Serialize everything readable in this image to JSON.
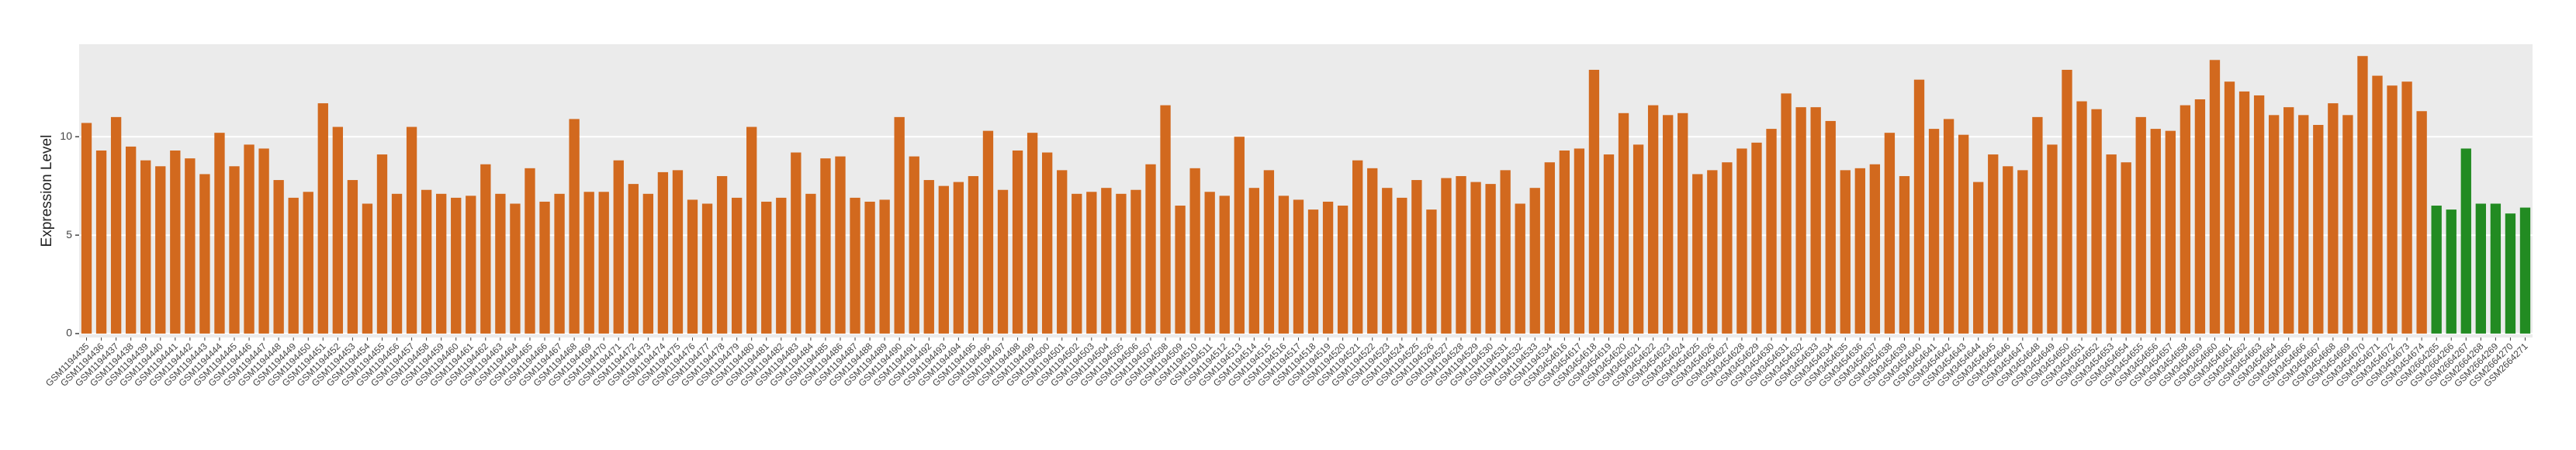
{
  "chart_data": {
    "type": "bar",
    "y_label": "Expression Level",
    "categories": [
      "GSM1194435",
      "GSM1194436",
      "GSM1194437",
      "GSM1194438",
      "GSM1194439",
      "GSM1194440",
      "GSM1194441",
      "GSM1194442",
      "GSM1194443",
      "GSM1194444",
      "GSM1194445",
      "GSM1194446",
      "GSM1194447",
      "GSM1194448",
      "GSM1194449",
      "GSM1194450",
      "GSM1194451",
      "GSM1194452",
      "GSM1194453",
      "GSM1194454",
      "GSM1194455",
      "GSM1194456",
      "GSM1194457",
      "GSM1194458",
      "GSM1194459",
      "GSM1194460",
      "GSM1194461",
      "GSM1194462",
      "GSM1194463",
      "GSM1194464",
      "GSM1194465",
      "GSM1194466",
      "GSM1194467",
      "GSM1194468",
      "GSM1194469",
      "GSM1194470",
      "GSM1194471",
      "GSM1194472",
      "GSM1194473",
      "GSM1194474",
      "GSM1194475",
      "GSM1194476",
      "GSM1194477",
      "GSM1194478",
      "GSM1194479",
      "GSM1194480",
      "GSM1194481",
      "GSM1194482",
      "GSM1194483",
      "GSM1194484",
      "GSM1194485",
      "GSM1194486",
      "GSM1194487",
      "GSM1194488",
      "GSM1194489",
      "GSM1194490",
      "GSM1194491",
      "GSM1194492",
      "GSM1194493",
      "GSM1194494",
      "GSM1194495",
      "GSM1194496",
      "GSM1194497",
      "GSM1194498",
      "GSM1194499",
      "GSM1194500",
      "GSM1194501",
      "GSM1194502",
      "GSM1194503",
      "GSM1194504",
      "GSM1194505",
      "GSM1194506",
      "GSM1194507",
      "GSM1194508",
      "GSM1194509",
      "GSM1194510",
      "GSM1194511",
      "GSM1194512",
      "GSM1194513",
      "GSM1194514",
      "GSM1194515",
      "GSM1194516",
      "GSM1194517",
      "GSM1194518",
      "GSM1194519",
      "GSM1194520",
      "GSM1194521",
      "GSM1194522",
      "GSM1194523",
      "GSM1194524",
      "GSM1194525",
      "GSM1194526",
      "GSM1194527",
      "GSM1194528",
      "GSM1194529",
      "GSM1194530",
      "GSM1194531",
      "GSM1194532",
      "GSM1194533",
      "GSM1194534",
      "GSM3454616",
      "GSM3454617",
      "GSM3454618",
      "GSM3454619",
      "GSM3454620",
      "GSM3454621",
      "GSM3454622",
      "GSM3454623",
      "GSM3454624",
      "GSM3454625",
      "GSM3454626",
      "GSM3454627",
      "GSM3454628",
      "GSM3454629",
      "GSM3454630",
      "GSM3454631",
      "GSM3454632",
      "GSM3454633",
      "GSM3454634",
      "GSM3454635",
      "GSM3454636",
      "GSM3454637",
      "GSM3454638",
      "GSM3454639",
      "GSM3454640",
      "GSM3454641",
      "GSM3454642",
      "GSM3454643",
      "GSM3454644",
      "GSM3454645",
      "GSM3454646",
      "GSM3454647",
      "GSM3454648",
      "GSM3454649",
      "GSM3454650",
      "GSM3454651",
      "GSM3454652",
      "GSM3454653",
      "GSM3454654",
      "GSM3454655",
      "GSM3454656",
      "GSM3454657",
      "GSM3454658",
      "GSM3454659",
      "GSM3454660",
      "GSM3454661",
      "GSM3454662",
      "GSM3454663",
      "GSM3454664",
      "GSM3454665",
      "GSM3454666",
      "GSM3454667",
      "GSM3454668",
      "GSM3454669",
      "GSM3454670",
      "GSM3454671",
      "GSM3454672",
      "GSM3454673",
      "GSM3454674",
      "GSM2664265",
      "GSM2664266",
      "GSM2664267",
      "GSM2664268",
      "GSM2664269",
      "GSM2664270",
      "GSM2664271"
    ],
    "values": [
      10.7,
      9.3,
      11.0,
      9.5,
      8.8,
      8.5,
      9.3,
      8.9,
      8.1,
      10.2,
      8.5,
      9.6,
      9.4,
      7.8,
      6.9,
      7.2,
      11.7,
      10.5,
      7.8,
      6.6,
      9.1,
      7.1,
      10.5,
      7.3,
      7.1,
      6.9,
      7.0,
      8.6,
      7.1,
      6.6,
      8.4,
      6.7,
      7.1,
      10.9,
      7.2,
      7.2,
      8.8,
      7.6,
      7.1,
      8.2,
      8.3,
      6.8,
      6.6,
      8.0,
      6.9,
      10.5,
      6.7,
      6.9,
      9.2,
      7.1,
      8.9,
      9.0,
      6.9,
      6.7,
      6.8,
      11.0,
      9.0,
      7.8,
      7.5,
      7.7,
      8.0,
      10.3,
      7.3,
      9.3,
      10.2,
      9.2,
      8.3,
      7.1,
      7.2,
      7.4,
      7.1,
      7.3,
      8.6,
      11.6,
      6.5,
      8.4,
      7.2,
      7.0,
      10.0,
      7.4,
      8.3,
      7.0,
      6.8,
      6.3,
      6.7,
      6.5,
      8.8,
      8.4,
      7.4,
      6.9,
      7.8,
      6.3,
      7.9,
      8.0,
      7.7,
      7.6,
      8.3,
      6.6,
      7.4,
      8.7,
      9.3,
      9.4,
      13.4,
      9.1,
      11.2,
      9.6,
      11.6,
      11.1,
      11.2,
      8.1,
      8.3,
      8.7,
      9.4,
      9.7,
      10.4,
      12.2,
      11.5,
      11.5,
      10.8,
      8.3,
      8.4,
      8.6,
      10.2,
      8.0,
      12.9,
      10.4,
      10.9,
      10.1,
      7.7,
      9.1,
      8.5,
      8.3,
      11.0,
      9.6,
      13.4,
      11.8,
      11.4,
      9.1,
      8.7,
      11.0,
      10.4,
      10.3,
      11.6,
      11.9,
      13.9,
      12.8,
      12.3,
      12.1,
      11.1,
      11.5,
      11.1,
      10.6,
      11.7,
      11.1,
      14.1,
      13.1,
      12.6,
      12.8,
      11.3,
      6.5,
      6.3,
      9.4,
      6.6,
      6.6,
      6.1,
      6.4
    ],
    "colors": [
      "#d2691e",
      "#d2691e",
      "#d2691e",
      "#d2691e",
      "#d2691e",
      "#d2691e",
      "#d2691e",
      "#d2691e",
      "#d2691e",
      "#d2691e",
      "#d2691e",
      "#d2691e",
      "#d2691e",
      "#d2691e",
      "#d2691e",
      "#d2691e",
      "#d2691e",
      "#d2691e",
      "#d2691e",
      "#d2691e",
      "#d2691e",
      "#d2691e",
      "#d2691e",
      "#d2691e",
      "#d2691e",
      "#d2691e",
      "#d2691e",
      "#d2691e",
      "#d2691e",
      "#d2691e",
      "#d2691e",
      "#d2691e",
      "#d2691e",
      "#d2691e",
      "#d2691e",
      "#d2691e",
      "#d2691e",
      "#d2691e",
      "#d2691e",
      "#d2691e",
      "#d2691e",
      "#d2691e",
      "#d2691e",
      "#d2691e",
      "#d2691e",
      "#d2691e",
      "#d2691e",
      "#d2691e",
      "#d2691e",
      "#d2691e",
      "#d2691e",
      "#d2691e",
      "#d2691e",
      "#d2691e",
      "#d2691e",
      "#d2691e",
      "#d2691e",
      "#d2691e",
      "#d2691e",
      "#d2691e",
      "#d2691e",
      "#d2691e",
      "#d2691e",
      "#d2691e",
      "#d2691e",
      "#d2691e",
      "#d2691e",
      "#d2691e",
      "#d2691e",
      "#d2691e",
      "#d2691e",
      "#d2691e",
      "#d2691e",
      "#d2691e",
      "#d2691e",
      "#d2691e",
      "#d2691e",
      "#d2691e",
      "#d2691e",
      "#d2691e",
      "#d2691e",
      "#d2691e",
      "#d2691e",
      "#d2691e",
      "#d2691e",
      "#d2691e",
      "#d2691e",
      "#d2691e",
      "#d2691e",
      "#d2691e",
      "#d2691e",
      "#d2691e",
      "#d2691e",
      "#d2691e",
      "#d2691e",
      "#d2691e",
      "#d2691e",
      "#d2691e",
      "#d2691e",
      "#d2691e",
      "#d2691e",
      "#d2691e",
      "#d2691e",
      "#d2691e",
      "#d2691e",
      "#d2691e",
      "#d2691e",
      "#d2691e",
      "#d2691e",
      "#d2691e",
      "#d2691e",
      "#d2691e",
      "#d2691e",
      "#d2691e",
      "#d2691e",
      "#d2691e",
      "#d2691e",
      "#d2691e",
      "#d2691e",
      "#d2691e",
      "#d2691e",
      "#d2691e",
      "#d2691e",
      "#d2691e",
      "#d2691e",
      "#d2691e",
      "#d2691e",
      "#d2691e",
      "#d2691e",
      "#d2691e",
      "#d2691e",
      "#d2691e",
      "#d2691e",
      "#d2691e",
      "#d2691e",
      "#d2691e",
      "#d2691e",
      "#d2691e",
      "#d2691e",
      "#d2691e",
      "#d2691e",
      "#d2691e",
      "#d2691e",
      "#d2691e",
      "#d2691e",
      "#d2691e",
      "#d2691e",
      "#d2691e",
      "#d2691e",
      "#d2691e",
      "#d2691e",
      "#d2691e",
      "#d2691e",
      "#d2691e",
      "#d2691e",
      "#d2691e",
      "#d2691e",
      "#d2691e",
      "#d2691e",
      "#228b22",
      "#228b22",
      "#228b22",
      "#228b22",
      "#228b22",
      "#228b22",
      "#228b22"
    ],
    "ylim": [
      -0.2,
      14.7
    ],
    "yticks": [
      0,
      5,
      10
    ],
    "grid": true
  }
}
